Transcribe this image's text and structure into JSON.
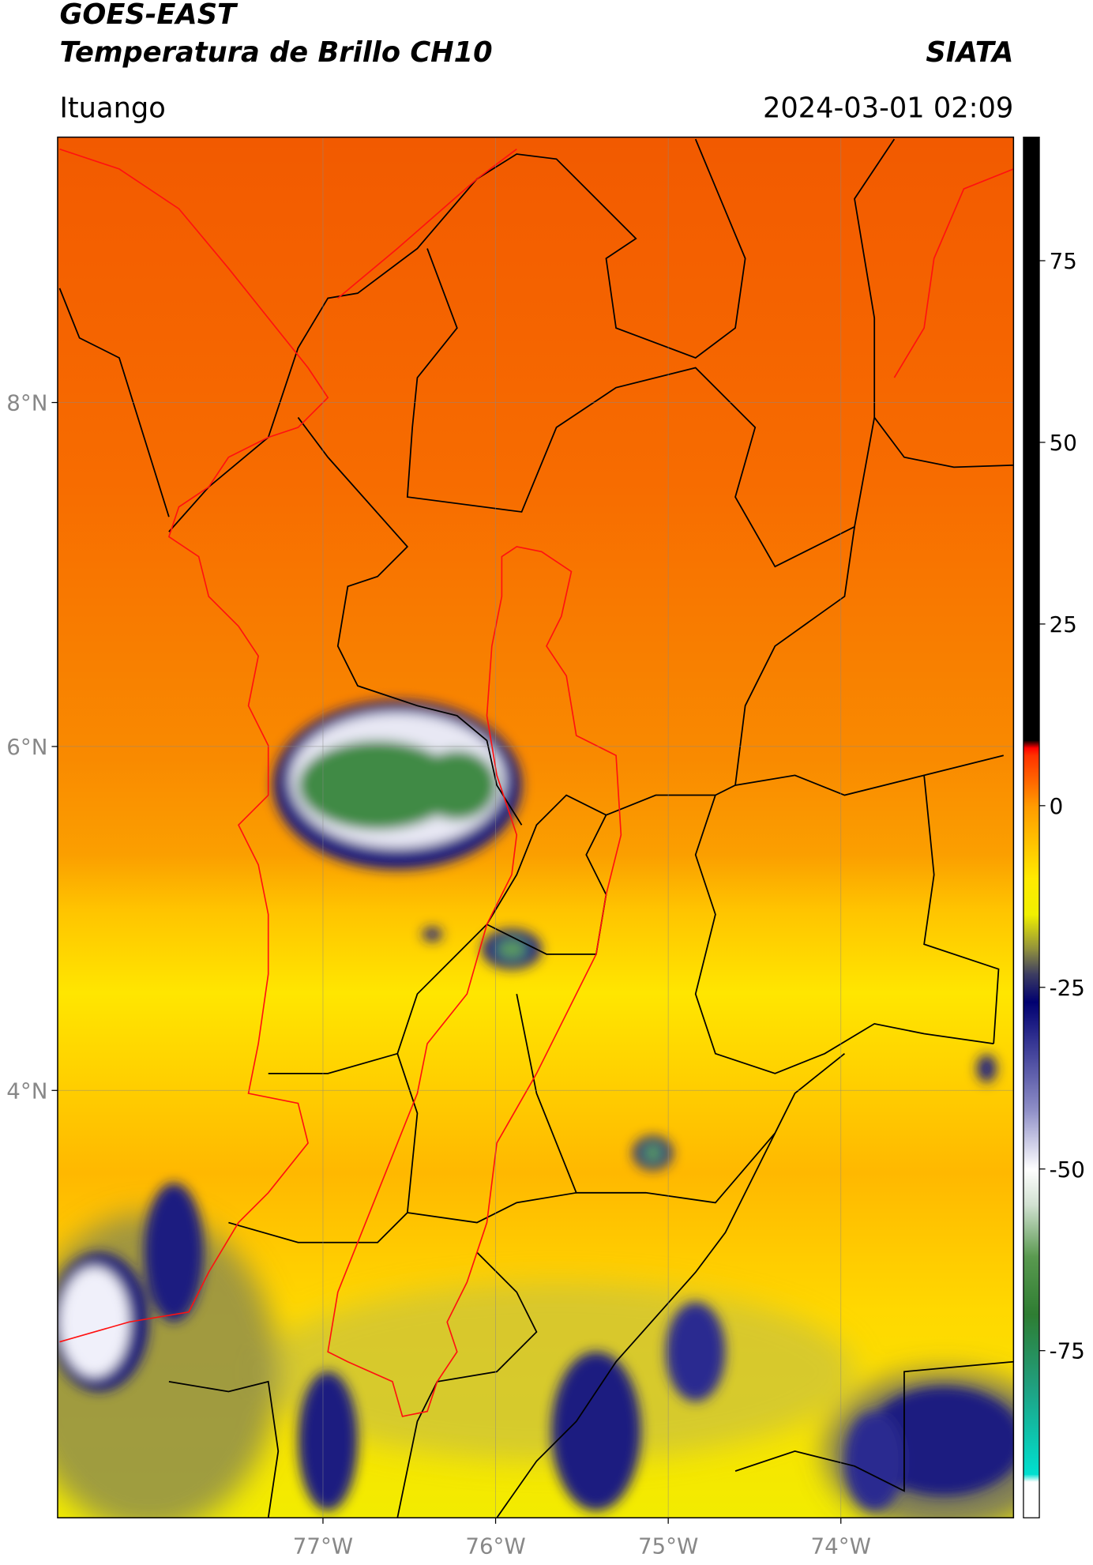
{
  "header": {
    "title": "GOES-EAST",
    "subtitle": "Temperatura de Brillo CH10",
    "source": "SIATA",
    "location": "Ituango",
    "datetime": "2024-03-01 02:09"
  },
  "map": {
    "lonlim": [
      -78.537,
      -73.0
    ],
    "latlim": [
      1.515,
      9.543
    ],
    "lon_ticks": [
      {
        "value": -77,
        "label": "77°W"
      },
      {
        "value": -76,
        "label": "76°W"
      },
      {
        "value": -75,
        "label": "75°W"
      },
      {
        "value": -74,
        "label": "74°W"
      }
    ],
    "lat_ticks": [
      {
        "value": 4,
        "label": "4°N"
      },
      {
        "value": 6,
        "label": "6°N"
      },
      {
        "value": 8,
        "label": "8°N"
      }
    ],
    "grid": true
  },
  "colorbar": {
    "lim": [
      -98,
      92
    ],
    "ticks": [
      -75,
      -50,
      -25,
      0,
      25,
      50,
      75
    ],
    "colormap": [
      {
        "value": -98,
        "color": "#ffffff"
      },
      {
        "value": -93,
        "color": "#ffffff"
      },
      {
        "value": -92,
        "color": "#00e0d0"
      },
      {
        "value": -80,
        "color": "#20a080"
      },
      {
        "value": -70,
        "color": "#2e7d32"
      },
      {
        "value": -62,
        "color": "#5a9a50"
      },
      {
        "value": -55,
        "color": "#d0e0d0"
      },
      {
        "value": -50,
        "color": "#ffffff"
      },
      {
        "value": -42,
        "color": "#9090c8"
      },
      {
        "value": -32,
        "color": "#303090"
      },
      {
        "value": -27,
        "color": "#000070"
      },
      {
        "value": -23,
        "color": "#404060"
      },
      {
        "value": -20,
        "color": "#8a8a40"
      },
      {
        "value": -15,
        "color": "#f0f000"
      },
      {
        "value": -10,
        "color": "#ffea00"
      },
      {
        "value": 0,
        "color": "#ff9a00"
      },
      {
        "value": 7,
        "color": "#ff3000"
      },
      {
        "value": 8,
        "color": "#ff0000"
      },
      {
        "value": 9,
        "color": "#000000"
      },
      {
        "value": 92,
        "color": "#000000"
      }
    ]
  }
}
